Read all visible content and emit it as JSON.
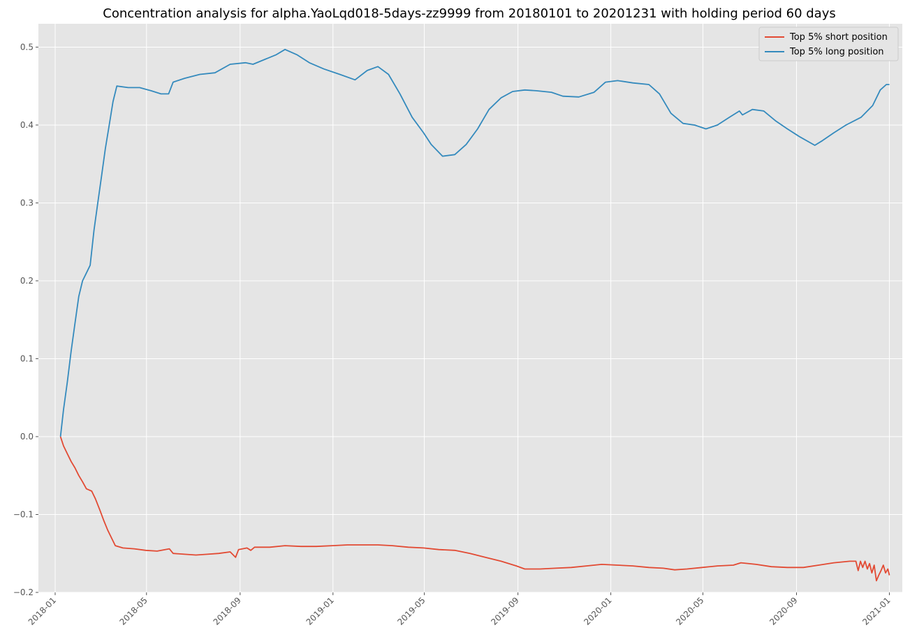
{
  "chart_data": {
    "type": "line",
    "title": "Concentration analysis for alpha.YaoLqd018-5days-zz9999 from 20180101 to 20201231 with holding period 60 days",
    "xlabel": "",
    "ylabel": "",
    "x_axis_type": "date",
    "xlim": [
      "2017-12-10",
      "2021-01-18"
    ],
    "ylim": [
      -0.2,
      0.53
    ],
    "x_ticks": [
      "2018-01",
      "2018-05",
      "2018-09",
      "2019-01",
      "2019-05",
      "2019-09",
      "2020-01",
      "2020-05",
      "2020-09",
      "2021-01"
    ],
    "y_ticks": [
      "0.5",
      "0.4",
      "0.3",
      "0.2",
      "0.1",
      "0.0",
      "−0.1",
      "−0.2"
    ],
    "grid": true,
    "legend_position": "top-right",
    "colors": {
      "short": "#e24a33",
      "long": "#348abd",
      "background": "#e5e5e5",
      "grid": "#ffffff"
    },
    "series": [
      {
        "name": "Top 5% short position",
        "color": "#e24a33",
        "points": [
          [
            "2018-01-08",
            0.0
          ],
          [
            "2018-01-12",
            -0.012
          ],
          [
            "2018-01-17",
            -0.022
          ],
          [
            "2018-01-22",
            -0.032
          ],
          [
            "2018-01-27",
            -0.04
          ],
          [
            "2018-02-01",
            -0.05
          ],
          [
            "2018-02-06",
            -0.058
          ],
          [
            "2018-02-11",
            -0.067
          ],
          [
            "2018-02-18",
            -0.07
          ],
          [
            "2018-02-23",
            -0.08
          ],
          [
            "2018-03-01",
            -0.095
          ],
          [
            "2018-03-06",
            -0.108
          ],
          [
            "2018-03-11",
            -0.12
          ],
          [
            "2018-03-16",
            -0.13
          ],
          [
            "2018-03-21",
            -0.14
          ],
          [
            "2018-03-31",
            -0.143
          ],
          [
            "2018-04-15",
            -0.144
          ],
          [
            "2018-04-30",
            -0.146
          ],
          [
            "2018-05-15",
            -0.147
          ],
          [
            "2018-05-31",
            -0.144
          ],
          [
            "2018-06-05",
            -0.15
          ],
          [
            "2018-06-20",
            -0.151
          ],
          [
            "2018-07-05",
            -0.152
          ],
          [
            "2018-07-20",
            -0.151
          ],
          [
            "2018-08-04",
            -0.15
          ],
          [
            "2018-08-19",
            -0.148
          ],
          [
            "2018-08-26",
            -0.155
          ],
          [
            "2018-08-30",
            -0.145
          ],
          [
            "2018-09-10",
            -0.143
          ],
          [
            "2018-09-15",
            -0.146
          ],
          [
            "2018-09-20",
            -0.142
          ],
          [
            "2018-10-10",
            -0.142
          ],
          [
            "2018-10-30",
            -0.14
          ],
          [
            "2018-11-20",
            -0.141
          ],
          [
            "2018-12-10",
            -0.141
          ],
          [
            "2018-12-31",
            -0.14
          ],
          [
            "2019-01-20",
            -0.139
          ],
          [
            "2019-02-10",
            -0.139
          ],
          [
            "2019-03-01",
            -0.139
          ],
          [
            "2019-03-20",
            -0.14
          ],
          [
            "2019-04-10",
            -0.142
          ],
          [
            "2019-04-30",
            -0.143
          ],
          [
            "2019-05-20",
            -0.145
          ],
          [
            "2019-06-10",
            -0.146
          ],
          [
            "2019-06-30",
            -0.15
          ],
          [
            "2019-07-20",
            -0.155
          ],
          [
            "2019-08-10",
            -0.16
          ],
          [
            "2019-08-30",
            -0.166
          ],
          [
            "2019-09-10",
            -0.17
          ],
          [
            "2019-09-30",
            -0.17
          ],
          [
            "2019-10-20",
            -0.169
          ],
          [
            "2019-11-10",
            -0.168
          ],
          [
            "2019-11-30",
            -0.166
          ],
          [
            "2019-12-20",
            -0.164
          ],
          [
            "2020-01-10",
            -0.165
          ],
          [
            "2020-01-30",
            -0.166
          ],
          [
            "2020-02-20",
            -0.168
          ],
          [
            "2020-03-10",
            -0.169
          ],
          [
            "2020-03-25",
            -0.171
          ],
          [
            "2020-04-10",
            -0.17
          ],
          [
            "2020-04-30",
            -0.168
          ],
          [
            "2020-05-20",
            -0.166
          ],
          [
            "2020-06-10",
            -0.165
          ],
          [
            "2020-06-20",
            -0.162
          ],
          [
            "2020-07-10",
            -0.164
          ],
          [
            "2020-07-30",
            -0.167
          ],
          [
            "2020-08-20",
            -0.168
          ],
          [
            "2020-09-10",
            -0.168
          ],
          [
            "2020-09-30",
            -0.165
          ],
          [
            "2020-10-20",
            -0.162
          ],
          [
            "2020-11-10",
            -0.16
          ],
          [
            "2020-11-18",
            -0.16
          ],
          [
            "2020-11-21",
            -0.172
          ],
          [
            "2020-11-24",
            -0.16
          ],
          [
            "2020-11-27",
            -0.168
          ],
          [
            "2020-11-30",
            -0.16
          ],
          [
            "2020-12-03",
            -0.17
          ],
          [
            "2020-12-06",
            -0.163
          ],
          [
            "2020-12-09",
            -0.175
          ],
          [
            "2020-12-12",
            -0.165
          ],
          [
            "2020-12-15",
            -0.185
          ],
          [
            "2020-12-18",
            -0.178
          ],
          [
            "2020-12-21",
            -0.172
          ],
          [
            "2020-12-24",
            -0.165
          ],
          [
            "2020-12-27",
            -0.175
          ],
          [
            "2020-12-30",
            -0.17
          ],
          [
            "2021-01-01",
            -0.178
          ]
        ]
      },
      {
        "name": "Top 5% long position",
        "color": "#348abd",
        "points": [
          [
            "2018-01-08",
            0.0
          ],
          [
            "2018-01-12",
            0.035
          ],
          [
            "2018-01-17",
            0.07
          ],
          [
            "2018-01-22",
            0.11
          ],
          [
            "2018-01-27",
            0.145
          ],
          [
            "2018-02-01",
            0.18
          ],
          [
            "2018-02-06",
            0.2
          ],
          [
            "2018-02-11",
            0.21
          ],
          [
            "2018-02-16",
            0.22
          ],
          [
            "2018-02-21",
            0.265
          ],
          [
            "2018-02-26",
            0.3
          ],
          [
            "2018-03-03",
            0.335
          ],
          [
            "2018-03-08",
            0.37
          ],
          [
            "2018-03-13",
            0.4
          ],
          [
            "2018-03-18",
            0.43
          ],
          [
            "2018-03-23",
            0.45
          ],
          [
            "2018-04-07",
            0.448
          ],
          [
            "2018-04-22",
            0.448
          ],
          [
            "2018-05-07",
            0.444
          ],
          [
            "2018-05-20",
            0.44
          ],
          [
            "2018-05-30",
            0.44
          ],
          [
            "2018-06-05",
            0.455
          ],
          [
            "2018-06-20",
            0.46
          ],
          [
            "2018-07-10",
            0.465
          ],
          [
            "2018-07-30",
            0.467
          ],
          [
            "2018-08-19",
            0.478
          ],
          [
            "2018-09-08",
            0.48
          ],
          [
            "2018-09-18",
            0.478
          ],
          [
            "2018-09-28",
            0.482
          ],
          [
            "2018-10-18",
            0.49
          ],
          [
            "2018-10-30",
            0.497
          ],
          [
            "2018-11-15",
            0.49
          ],
          [
            "2018-12-01",
            0.48
          ],
          [
            "2018-12-20",
            0.472
          ],
          [
            "2019-01-10",
            0.465
          ],
          [
            "2019-01-30",
            0.458
          ],
          [
            "2019-02-15",
            0.47
          ],
          [
            "2019-03-01",
            0.475
          ],
          [
            "2019-03-15",
            0.465
          ],
          [
            "2019-03-30",
            0.44
          ],
          [
            "2019-04-15",
            0.41
          ],
          [
            "2019-04-30",
            0.39
          ],
          [
            "2019-05-10",
            0.375
          ],
          [
            "2019-05-25",
            0.36
          ],
          [
            "2019-06-10",
            0.362
          ],
          [
            "2019-06-25",
            0.375
          ],
          [
            "2019-07-10",
            0.395
          ],
          [
            "2019-07-25",
            0.42
          ],
          [
            "2019-08-10",
            0.435
          ],
          [
            "2019-08-25",
            0.443
          ],
          [
            "2019-09-10",
            0.445
          ],
          [
            "2019-09-25",
            0.444
          ],
          [
            "2019-10-15",
            0.442
          ],
          [
            "2019-10-30",
            0.437
          ],
          [
            "2019-11-20",
            0.436
          ],
          [
            "2019-12-10",
            0.442
          ],
          [
            "2019-12-25",
            0.455
          ],
          [
            "2020-01-10",
            0.457
          ],
          [
            "2020-01-30",
            0.454
          ],
          [
            "2020-02-20",
            0.452
          ],
          [
            "2020-03-05",
            0.44
          ],
          [
            "2020-03-20",
            0.415
          ],
          [
            "2020-04-05",
            0.402
          ],
          [
            "2020-04-20",
            0.4
          ],
          [
            "2020-05-05",
            0.395
          ],
          [
            "2020-05-20",
            0.4
          ],
          [
            "2020-06-05",
            0.41
          ],
          [
            "2020-06-18",
            0.418
          ],
          [
            "2020-06-22",
            0.413
          ],
          [
            "2020-07-05",
            0.42
          ],
          [
            "2020-07-20",
            0.418
          ],
          [
            "2020-08-05",
            0.405
          ],
          [
            "2020-08-20",
            0.395
          ],
          [
            "2020-09-05",
            0.385
          ],
          [
            "2020-09-25",
            0.374
          ],
          [
            "2020-10-05",
            0.38
          ],
          [
            "2020-10-20",
            0.39
          ],
          [
            "2020-11-05",
            0.4
          ],
          [
            "2020-11-25",
            0.41
          ],
          [
            "2020-12-10",
            0.425
          ],
          [
            "2020-12-20",
            0.445
          ],
          [
            "2020-12-28",
            0.452
          ],
          [
            "2021-01-01",
            0.452
          ]
        ]
      }
    ]
  }
}
